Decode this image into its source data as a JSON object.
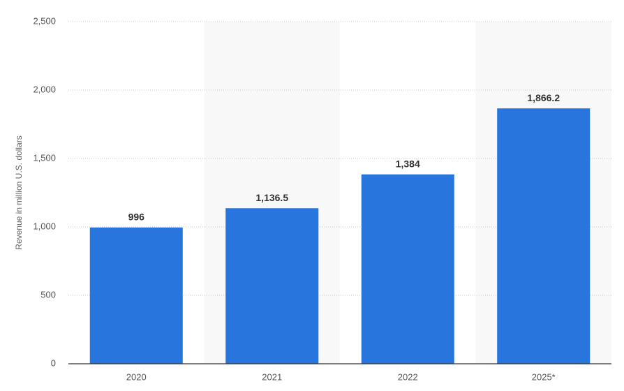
{
  "chart_data": {
    "type": "bar",
    "y_label": "Revenue in million U.S. dollars",
    "categories": [
      "2020",
      "2021",
      "2022",
      "2025*"
    ],
    "values": [
      996,
      1136.5,
      1384,
      1866.2
    ],
    "value_labels": [
      "996",
      "1,136.5",
      "1,384",
      "1,866.2"
    ],
    "color": "#2875dd",
    "ylim": [
      0,
      2500
    ],
    "yticks": [
      0,
      500,
      {
        "value": 1000,
        "label": "1,000"
      },
      {
        "value": 1500,
        "label": "1,500"
      },
      {
        "value": 2000,
        "label": "2,000"
      },
      {
        "value": 2500,
        "label": "2,500"
      }
    ],
    "grid": true
  }
}
